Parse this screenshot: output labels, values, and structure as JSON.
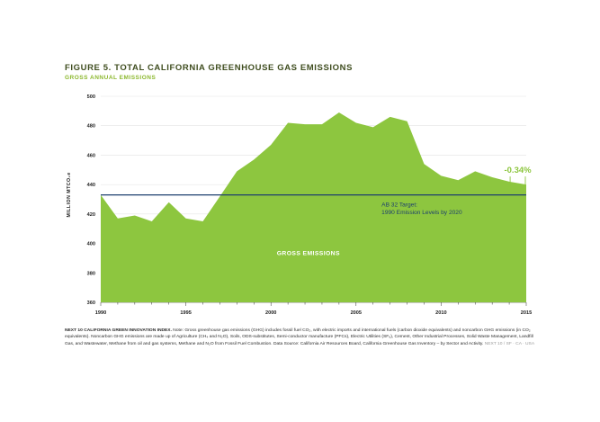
{
  "header": {
    "title": "FIGURE 5. TOTAL CALIFORNIA GREENHOUSE GAS EMISSIONS",
    "subtitle": "GROSS ANNUAL EMISSIONS"
  },
  "chart_data": {
    "type": "area",
    "title": "FIGURE 5. TOTAL CALIFORNIA GREENHOUSE GAS EMISSIONS",
    "subtitle": "GROSS ANNUAL EMISSIONS",
    "ylabel": "MILLION MTCO₂e",
    "xlabel": "",
    "xlim": [
      1990,
      2015
    ],
    "ylim": [
      360,
      500
    ],
    "x_ticks": [
      1990,
      1995,
      2000,
      2005,
      2010,
      2015
    ],
    "y_ticks": [
      360,
      380,
      400,
      420,
      440,
      460,
      480,
      500
    ],
    "grid": true,
    "series": [
      {
        "name": "GROSS EMISSIONS",
        "x": [
          1990,
          1991,
          1992,
          1993,
          1994,
          1995,
          1996,
          1997,
          1998,
          1999,
          2000,
          2001,
          2002,
          2003,
          2004,
          2005,
          2006,
          2007,
          2008,
          2009,
          2010,
          2011,
          2012,
          2013,
          2014,
          2015
        ],
        "values": [
          433,
          417,
          419,
          415,
          428,
          417,
          415,
          432,
          449,
          457,
          467,
          482,
          481,
          481,
          489,
          482,
          479,
          486,
          483,
          454,
          446,
          443,
          449,
          445,
          442,
          440
        ]
      }
    ],
    "reference_line": {
      "value": 433,
      "label_line1": "AB 32 Target:",
      "label_line2": "1990 Emission Levels by 2020"
    },
    "annotations": {
      "change": "-0.34%"
    },
    "colors": {
      "area": "#8dc63f",
      "target_line": "#1d3f6e",
      "annotation": "#8dc63f",
      "grid": "#e4e4e4",
      "title": "#3f4d1f",
      "subtitle": "#8cb82e"
    }
  },
  "footnote": {
    "lead": "NEXT 10 CALIFORNIA GREEN INNOVATION INDEX.",
    "body": " Note: Gross greenhouse gas emissions (GHG) includes fossil fuel CO₂, with electric imports and international fuels (carbon dioxide equivalents) and noncarbon GHG emissions (in CO₂ equivalents). Noncarbon GHG emissions are made up of Agriculture (CH₄ and N₂O), Soils, ODS-substitutes, Semi-conductor manufacture (PFCs), Electric Utilities (SF₆), Cement, Other Industrial Processes, Solid Waste Management, Landfill Gas, and Wastewater, Methane from oil and gas systems, Methane and N₂O from Fossil Fuel Combustion. Data Source: California Air Resources Board, California Greenhouse Gas Inventory – by Sector and Activity.",
    "source": " NEXT 10 / SF · CA · USA"
  }
}
